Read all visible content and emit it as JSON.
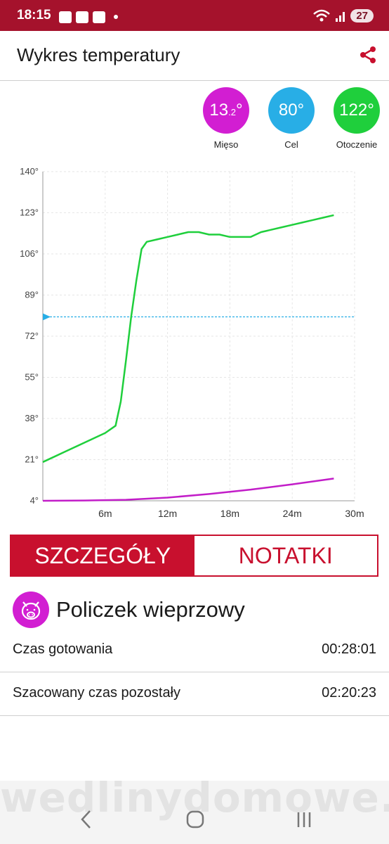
{
  "status_bar": {
    "time": "18:15",
    "battery": "27",
    "icons": [
      "gallery-icon",
      "elephant-icon",
      "bag-icon",
      "dot-icon",
      "wifi-icon",
      "signal-icon"
    ]
  },
  "app_bar": {
    "title": "Wykres temperatury",
    "share_icon": "share-icon"
  },
  "gauges": [
    {
      "value": "13",
      "decimal": ".2",
      "unit": "°",
      "label": "Mięso",
      "color": "#d21ed2"
    },
    {
      "value": "80",
      "decimal": "",
      "unit": "°",
      "label": "Cel",
      "color": "#28aee6"
    },
    {
      "value": "122",
      "decimal": "",
      "unit": "°",
      "label": "Otoczenie",
      "color": "#1fcf3c"
    }
  ],
  "chart_data": {
    "type": "line",
    "x_unit": "minutes",
    "xlim": [
      0,
      30
    ],
    "ylim": [
      4,
      140
    ],
    "y_ticks": [
      4,
      21,
      38,
      55,
      72,
      89,
      106,
      123,
      140
    ],
    "y_tick_labels": [
      "4°",
      "21°",
      "38°",
      "55°",
      "72°",
      "89°",
      "106°",
      "123°",
      "140°"
    ],
    "x_ticks": [
      6,
      12,
      18,
      24,
      30
    ],
    "x_tick_labels": [
      "6m",
      "12m",
      "18m",
      "24m",
      "30m"
    ],
    "grid": true,
    "target_line": {
      "value": 80,
      "color": "#28aee6"
    },
    "series": [
      {
        "color": "#1fcf3c",
        "x": [
          0,
          1,
          2,
          3,
          4,
          5,
          6,
          7,
          7.5,
          8,
          8.5,
          9,
          9.5,
          10,
          11,
          12,
          13,
          14,
          15,
          16,
          17,
          18,
          19,
          20,
          21,
          22,
          23,
          24,
          25,
          26,
          27,
          28
        ],
        "y": [
          20,
          22,
          24,
          26,
          28,
          30,
          32,
          35,
          45,
          62,
          80,
          95,
          108,
          111,
          112,
          113,
          114,
          115,
          115,
          114,
          114,
          113,
          113,
          113,
          115,
          116,
          117,
          118,
          119,
          120,
          121,
          122
        ]
      },
      {
        "color": "#c21dc8",
        "x": [
          0,
          4,
          8,
          12,
          16,
          20,
          24,
          28
        ],
        "y": [
          4,
          4.1,
          4.4,
          5.3,
          6.8,
          8.6,
          10.8,
          13.2
        ]
      }
    ]
  },
  "tabs": [
    {
      "label": "SZCZEGÓŁY",
      "active": true
    },
    {
      "label": "NOTATKI",
      "active": false
    }
  ],
  "product": {
    "name": "Policzek wieprzowy",
    "icon": "pig-icon"
  },
  "details": [
    {
      "label": "Czas gotowania",
      "value": "00:28:01"
    },
    {
      "label": "Szacowany czas pozostały",
      "value": "02:20:23"
    }
  ],
  "watermark": "wedlinydomowe.pl",
  "nav": [
    "back-icon",
    "home-icon",
    "recents-icon"
  ]
}
